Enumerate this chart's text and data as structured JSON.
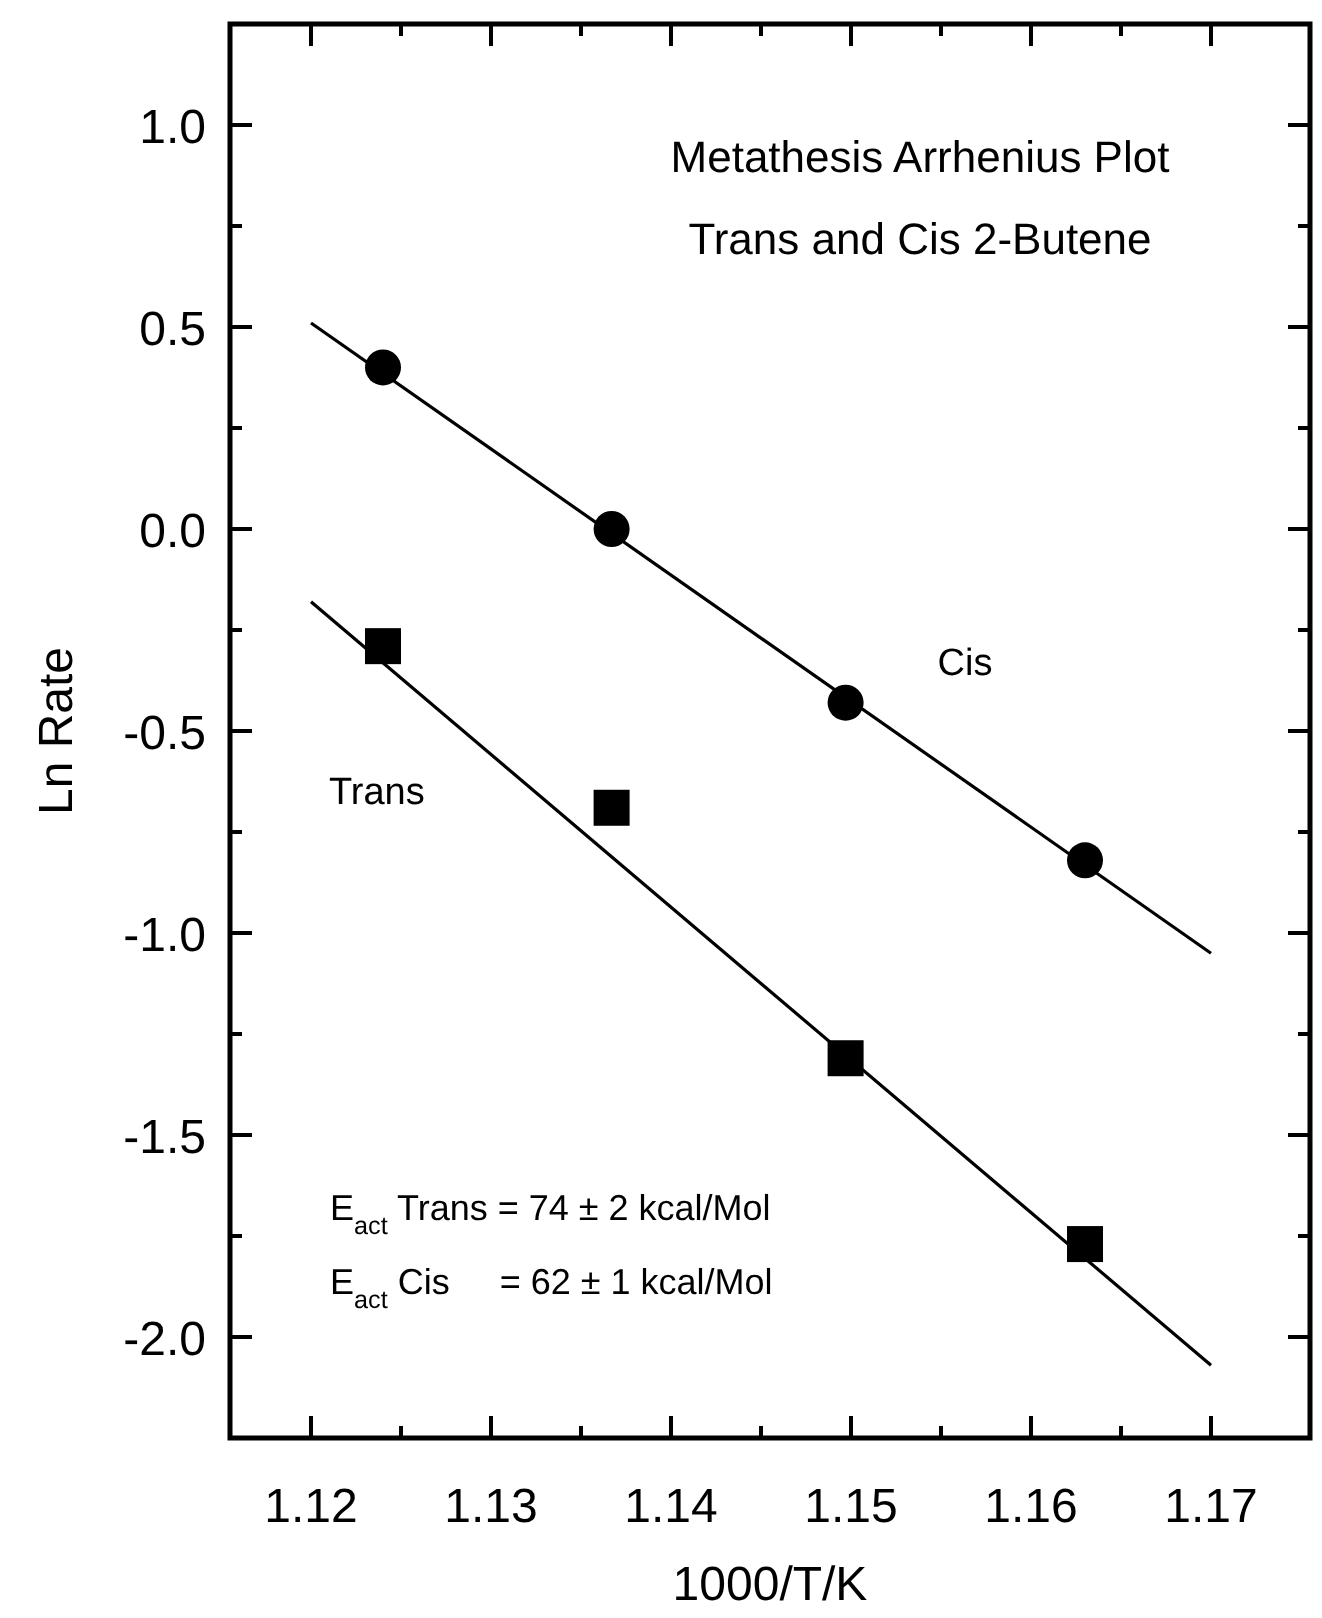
{
  "chart_data": {
    "type": "scatter",
    "title": "Metathesis Arrhenius Plot",
    "subtitle": "Trans and Cis 2-Butene",
    "xlabel": "1000/T/K",
    "ylabel": "Ln Rate",
    "xlim": [
      1.1155,
      1.1755
    ],
    "ylim": [
      -2.25,
      1.25
    ],
    "xticks": [
      1.12,
      {
        "value": 1.125,
        "label": null
      },
      1.13,
      {
        "value": 1.135,
        "label": null
      },
      1.14,
      {
        "value": 1.145,
        "label": null
      },
      1.15,
      {
        "value": 1.155,
        "label": null
      },
      1.16,
      {
        "value": 1.165,
        "label": null
      },
      1.17
    ],
    "yticks": [
      {
        "value": -2,
        "label": "-2.0"
      },
      {
        "value": -1.75,
        "label": null
      },
      -1.5,
      {
        "value": -1.25,
        "label": null
      },
      {
        "value": -1,
        "label": "-1.0"
      },
      {
        "value": -0.75,
        "label": null
      },
      -0.5,
      {
        "value": -0.25,
        "label": null
      },
      {
        "value": 0,
        "label": "0.0"
      },
      {
        "value": 0.25,
        "label": null
      },
      0.5,
      {
        "value": 0.75,
        "label": null
      },
      {
        "value": 1,
        "label": "1.0"
      }
    ],
    "series": [
      {
        "name": "Cis",
        "marker": "circle",
        "color": "#000000",
        "x": [
          1.124,
          1.1367,
          1.1497,
          1.163
        ],
        "values": [
          0.4,
          0.0,
          -0.43,
          -0.82
        ]
      },
      {
        "name": "Trans",
        "marker": "square",
        "color": "#000000",
        "x": [
          1.124,
          1.1367,
          1.1497,
          1.163
        ],
        "values": [
          -0.29,
          -0.69,
          -1.31,
          -1.77
        ]
      },
      {
        "type": "line",
        "marker": "none",
        "line_style": "solid",
        "color": "#000000",
        "x": [
          1.12,
          1.17
        ],
        "values": [
          0.51,
          -1.05
        ]
      },
      {
        "type": "line",
        "marker": "none",
        "line_style": "solid",
        "color": "#000000",
        "x": [
          1.12,
          1.17
        ],
        "values": [
          -0.18,
          -2.07
        ]
      }
    ],
    "annotations": [
      "E$_{act}$ Trans = 74 ± 2 kcal/Mol",
      "E$_{act}$ Cis     = 62 ± 1 kcal/Mol"
    ],
    "grid": false
  }
}
